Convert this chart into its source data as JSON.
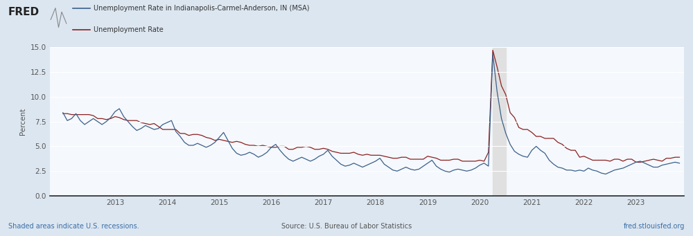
{
  "legend_labels": [
    "Unemployment Rate in Indianapolis-Carmel-Anderson, IN (MSA)",
    "Unemployment Rate"
  ],
  "line_colors": [
    "#3a5f8a",
    "#8b2020"
  ],
  "ylabel": "Percent",
  "ylim": [
    0.0,
    15.0
  ],
  "yticks": [
    0.0,
    2.5,
    5.0,
    7.5,
    10.0,
    12.5,
    15.0
  ],
  "background_color": "#dce6f0",
  "plot_bg_color": "#f5f8fc",
  "recession_color": "#e0e0e0",
  "recession_start": 2020.25,
  "recession_end": 2020.5,
  "footer_left": "Shaded areas indicate U.S. recessions.",
  "footer_center": "Source: U.S. Bureau of Labor Statistics",
  "footer_right": "fred.stlouisfed.org",
  "xlim_start": 2011.75,
  "xlim_end": 2023.92,
  "indy_values": [
    8.4,
    7.6,
    7.8,
    8.3,
    7.6,
    7.2,
    7.5,
    7.8,
    7.5,
    7.2,
    7.5,
    7.9,
    8.5,
    8.8,
    8.0,
    7.5,
    7.0,
    6.6,
    6.8,
    7.1,
    6.9,
    6.7,
    6.8,
    7.2,
    7.4,
    7.6,
    6.5,
    6.0,
    5.4,
    5.1,
    5.1,
    5.3,
    5.1,
    4.9,
    5.1,
    5.4,
    5.9,
    6.4,
    5.6,
    4.8,
    4.3,
    4.1,
    4.2,
    4.4,
    4.2,
    3.9,
    4.1,
    4.4,
    4.9,
    5.2,
    4.6,
    4.1,
    3.7,
    3.5,
    3.7,
    3.9,
    3.7,
    3.5,
    3.7,
    4.0,
    4.2,
    4.6,
    4.0,
    3.6,
    3.2,
    3.0,
    3.1,
    3.3,
    3.1,
    2.9,
    3.1,
    3.3,
    3.5,
    3.8,
    3.2,
    2.9,
    2.6,
    2.5,
    2.7,
    2.9,
    2.7,
    2.6,
    2.7,
    3.0,
    3.3,
    3.6,
    3.0,
    2.7,
    2.5,
    2.4,
    2.6,
    2.7,
    2.6,
    2.5,
    2.6,
    2.8,
    3.1,
    3.3,
    3.0,
    14.3,
    10.5,
    7.8,
    6.3,
    5.2,
    4.5,
    4.2,
    4.0,
    3.9,
    4.6,
    5.0,
    4.6,
    4.3,
    3.6,
    3.2,
    2.9,
    2.8,
    2.6,
    2.6,
    2.5,
    2.6,
    2.5,
    2.8,
    2.6,
    2.5,
    2.3,
    2.2,
    2.4,
    2.6,
    2.7,
    2.8,
    3.0,
    3.2,
    3.4,
    3.5,
    3.3,
    3.1,
    2.9,
    2.9,
    3.1,
    3.2,
    3.3,
    3.4,
    3.3
  ],
  "national_values": [
    8.3,
    8.3,
    8.2,
    8.2,
    8.2,
    8.2,
    8.2,
    8.1,
    7.8,
    7.8,
    7.7,
    7.8,
    8.0,
    7.9,
    7.7,
    7.6,
    7.6,
    7.6,
    7.4,
    7.3,
    7.2,
    7.3,
    7.0,
    6.7,
    6.7,
    6.7,
    6.7,
    6.3,
    6.3,
    6.1,
    6.2,
    6.2,
    6.1,
    5.9,
    5.8,
    5.6,
    5.7,
    5.6,
    5.5,
    5.4,
    5.5,
    5.4,
    5.2,
    5.1,
    5.1,
    5.0,
    5.1,
    5.0,
    4.9,
    4.9,
    5.0,
    5.0,
    4.7,
    4.7,
    4.9,
    4.9,
    5.0,
    4.9,
    4.7,
    4.7,
    4.8,
    4.7,
    4.5,
    4.4,
    4.3,
    4.3,
    4.3,
    4.4,
    4.2,
    4.1,
    4.2,
    4.1,
    4.1,
    4.1,
    4.0,
    3.9,
    3.8,
    3.8,
    3.9,
    3.9,
    3.7,
    3.7,
    3.7,
    3.7,
    4.0,
    3.9,
    3.8,
    3.6,
    3.6,
    3.6,
    3.7,
    3.7,
    3.5,
    3.5,
    3.5,
    3.5,
    3.6,
    3.5,
    4.4,
    14.7,
    13.0,
    11.1,
    10.2,
    8.4,
    7.9,
    6.9,
    6.7,
    6.7,
    6.4,
    6.0,
    6.0,
    5.8,
    5.8,
    5.8,
    5.4,
    5.2,
    4.8,
    4.6,
    4.6,
    3.9,
    4.0,
    3.8,
    3.6,
    3.6,
    3.6,
    3.6,
    3.5,
    3.7,
    3.7,
    3.5,
    3.7,
    3.7,
    3.4,
    3.4,
    3.5,
    3.6,
    3.7,
    3.6,
    3.5,
    3.8,
    3.8,
    3.9,
    3.9
  ]
}
